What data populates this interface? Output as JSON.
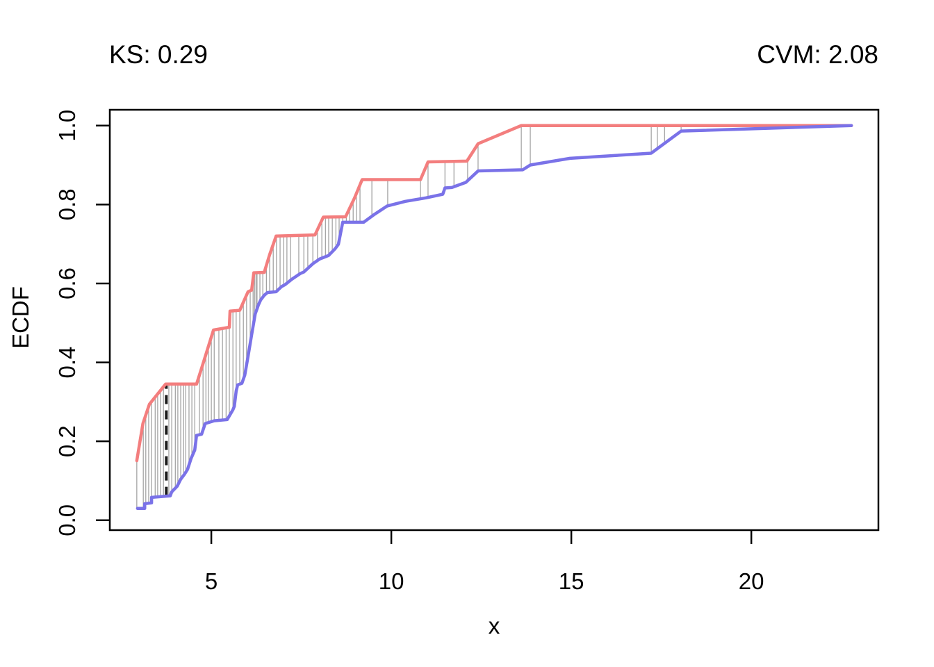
{
  "titles": {
    "left": "KS: 0.29",
    "right": "CVM: 2.08"
  },
  "chart_data": {
    "type": "line",
    "subtype": "ecdf-comparison",
    "title": "",
    "xlabel": "x",
    "ylabel": "ECDF",
    "x_ticks": [
      5,
      10,
      15,
      20
    ],
    "y_ticks": [
      "0.0",
      "0.2",
      "0.4",
      "0.6",
      "0.8",
      "1.0"
    ],
    "xlim": [
      2.18,
      23.53
    ],
    "ylim": [
      -0.025,
      1.04
    ],
    "grid": false,
    "legend": "none",
    "statistics": {
      "KS": 0.29,
      "CVM": 2.08
    },
    "series": [
      {
        "name": "ecdf-sample-1",
        "color": "#F37E7E",
        "points": [
          [
            2.93,
            0.151
          ],
          [
            3.1,
            0.245
          ],
          [
            3.28,
            0.294
          ],
          [
            3.73,
            0.345
          ],
          [
            4.59,
            0.345
          ],
          [
            4.75,
            0.391
          ],
          [
            5.06,
            0.482
          ],
          [
            5.5,
            0.489
          ],
          [
            5.52,
            0.53
          ],
          [
            5.79,
            0.532
          ],
          [
            6.02,
            0.579
          ],
          [
            6.12,
            0.583
          ],
          [
            6.18,
            0.627
          ],
          [
            6.47,
            0.628
          ],
          [
            6.62,
            0.673
          ],
          [
            6.8,
            0.72
          ],
          [
            7.88,
            0.723
          ],
          [
            8.11,
            0.768
          ],
          [
            8.73,
            0.769
          ],
          [
            8.98,
            0.817
          ],
          [
            9.19,
            0.863
          ],
          [
            10.81,
            0.863
          ],
          [
            11.02,
            0.908
          ],
          [
            12.1,
            0.91
          ],
          [
            12.41,
            0.954
          ],
          [
            13.61,
            1.0
          ],
          [
            22.78,
            1.0
          ]
        ]
      },
      {
        "name": "ecdf-sample-2",
        "color": "#7A72E8",
        "points": [
          [
            2.95,
            0.03
          ],
          [
            3.15,
            0.03
          ],
          [
            3.15,
            0.042
          ],
          [
            3.34,
            0.044
          ],
          [
            3.34,
            0.058
          ],
          [
            3.86,
            0.062
          ],
          [
            3.9,
            0.072
          ],
          [
            4.05,
            0.086
          ],
          [
            4.15,
            0.104
          ],
          [
            4.25,
            0.116
          ],
          [
            4.34,
            0.129
          ],
          [
            4.44,
            0.157
          ],
          [
            4.54,
            0.178
          ],
          [
            4.59,
            0.215
          ],
          [
            4.73,
            0.218
          ],
          [
            4.83,
            0.245
          ],
          [
            5.08,
            0.252
          ],
          [
            5.44,
            0.255
          ],
          [
            5.6,
            0.28
          ],
          [
            5.64,
            0.289
          ],
          [
            5.69,
            0.327
          ],
          [
            5.73,
            0.343
          ],
          [
            5.85,
            0.347
          ],
          [
            5.93,
            0.368
          ],
          [
            6.02,
            0.415
          ],
          [
            6.12,
            0.47
          ],
          [
            6.22,
            0.523
          ],
          [
            6.31,
            0.546
          ],
          [
            6.37,
            0.558
          ],
          [
            6.47,
            0.57
          ],
          [
            6.56,
            0.577
          ],
          [
            6.8,
            0.579
          ],
          [
            6.95,
            0.592
          ],
          [
            7.05,
            0.597
          ],
          [
            7.24,
            0.611
          ],
          [
            7.47,
            0.625
          ],
          [
            7.57,
            0.629
          ],
          [
            7.82,
            0.65
          ],
          [
            8.01,
            0.662
          ],
          [
            8.26,
            0.671
          ],
          [
            8.44,
            0.688
          ],
          [
            8.53,
            0.699
          ],
          [
            8.65,
            0.755
          ],
          [
            9.23,
            0.755
          ],
          [
            9.5,
            0.773
          ],
          [
            9.88,
            0.796
          ],
          [
            10.39,
            0.808
          ],
          [
            10.97,
            0.817
          ],
          [
            11.43,
            0.826
          ],
          [
            11.49,
            0.842
          ],
          [
            11.68,
            0.843
          ],
          [
            12.07,
            0.856
          ],
          [
            12.41,
            0.885
          ],
          [
            13.65,
            0.888
          ],
          [
            13.86,
            0.9
          ],
          [
            14.96,
            0.917
          ],
          [
            17.22,
            0.93
          ],
          [
            18.05,
            0.986
          ],
          [
            22.78,
            1.0
          ]
        ]
      }
    ],
    "difference_segments_x": [
      2.93,
      3.11,
      3.18,
      3.26,
      3.34,
      3.44,
      3.51,
      3.59,
      3.67,
      3.82,
      3.9,
      4.0,
      4.07,
      4.15,
      4.23,
      4.29,
      4.38,
      4.46,
      4.54,
      4.67,
      4.77,
      4.85,
      4.92,
      5.0,
      5.08,
      5.21,
      5.31,
      5.41,
      5.5,
      5.6,
      5.69,
      5.79,
      5.89,
      5.98,
      6.08,
      6.16,
      6.2,
      6.24,
      6.27,
      6.35,
      6.43,
      6.53,
      6.62,
      6.72,
      6.81,
      6.91,
      7.01,
      7.1,
      7.2,
      7.43,
      7.57,
      7.68,
      7.82,
      7.95,
      8.07,
      8.17,
      8.26,
      8.36,
      8.46,
      8.55,
      8.65,
      8.75,
      8.84,
      8.94,
      9.03,
      9.13,
      9.46,
      9.9,
      10.81,
      11.02,
      11.49,
      11.74,
      12.12,
      12.41,
      13.61,
      13.86,
      17.22,
      17.39,
      17.59,
      18.05
    ],
    "ks_line": {
      "x": 3.75,
      "y_from": 0.062,
      "y_to": 0.345
    }
  },
  "colors": {
    "series1": "#F37E7E",
    "series2": "#7A72E8",
    "difference_segment": "#9C9C9C",
    "ks_line": "#1A1A1A",
    "axis": "#000000",
    "background": "#FFFFFF"
  }
}
